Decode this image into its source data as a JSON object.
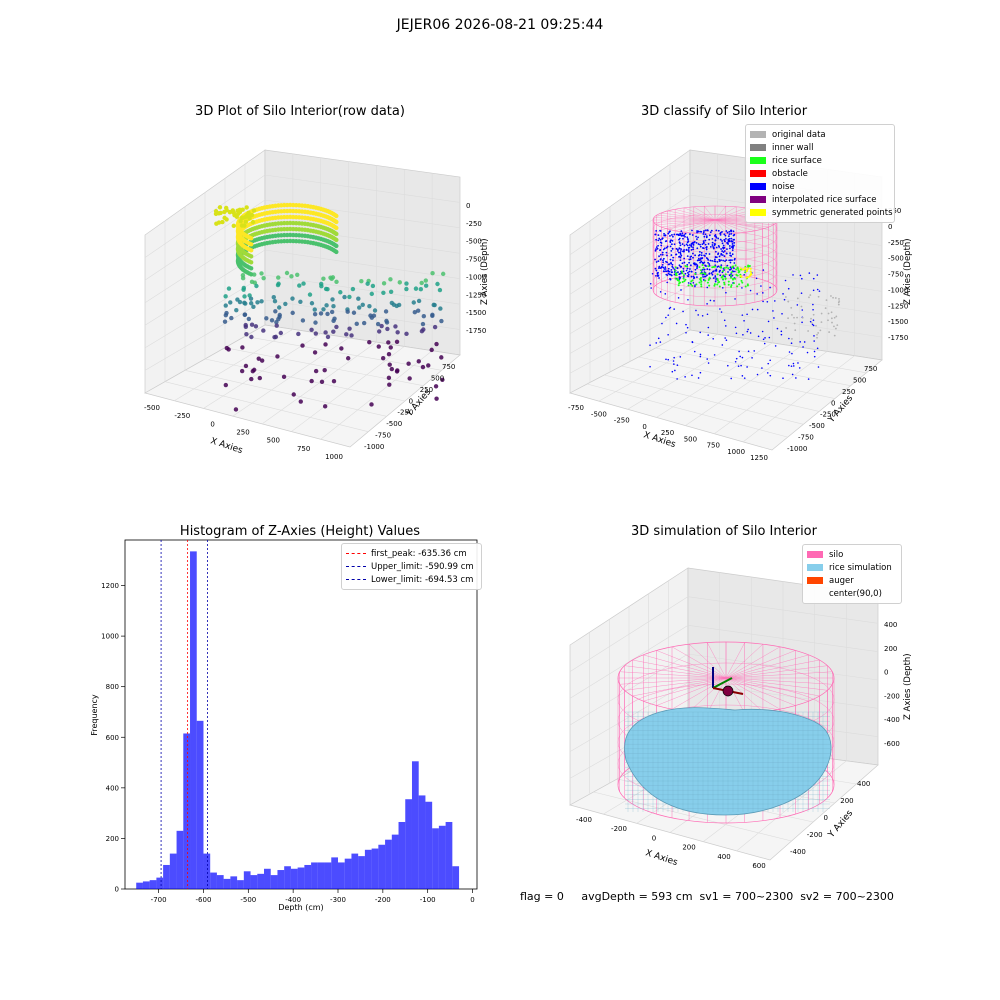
{
  "suptitle": "JEJER06 2026-08-21 09:25:44",
  "panels": {
    "raw": {
      "title": "3D Plot of Silo Interior(row data)",
      "xlabel": "X Axies",
      "ylabel": "Y Axies",
      "zlabel": "Z Axies (Depth)",
      "xticks": [
        "-500",
        "-250",
        "0",
        "250",
        "500",
        "750",
        "1000"
      ],
      "yticks": [
        "750",
        "500",
        "250",
        "0",
        "-250",
        "-500",
        "-750",
        "-1000"
      ],
      "zticks": [
        "0",
        "-250",
        "-500",
        "-750",
        "-1000",
        "-1250",
        "-1500",
        "-1750"
      ]
    },
    "classify": {
      "title": "3D classify of Silo Interior",
      "xlabel": "X Axies",
      "ylabel": "Y Axies",
      "zlabel": "Z Axies (Depth)",
      "xticks": [
        "-750",
        "-500",
        "-250",
        "0",
        "250",
        "500",
        "750",
        "1000",
        "1250"
      ],
      "yticks": [
        "750",
        "500",
        "250",
        "0",
        "-250",
        "-500",
        "-750",
        "-1000"
      ],
      "zticks": [
        "250",
        "0",
        "-250",
        "-500",
        "-750",
        "-1000",
        "-1250",
        "-1500",
        "-1750"
      ],
      "legend": [
        {
          "label": "original data",
          "color": "#b3b3b3"
        },
        {
          "label": "inner wall",
          "color": "#808080"
        },
        {
          "label": "rice surface",
          "color": "#1aff1a"
        },
        {
          "label": "obstacle",
          "color": "#ff0000"
        },
        {
          "label": "noise",
          "color": "#0000ff"
        },
        {
          "label": "interpolated rice surface",
          "color": "#800080"
        },
        {
          "label": "symmetric generated points",
          "color": "#ffff00"
        }
      ]
    },
    "histogram": {
      "title": "Histogram of Z-Axies (Height) Values",
      "xlabel": "Depth (cm)",
      "ylabel": "Frequency",
      "legend": [
        {
          "label": "first_peak: -635.36 cm",
          "color": "#ff0000"
        },
        {
          "label": "Upper_limit: -590.99 cm",
          "color": "#0000aa"
        },
        {
          "label": "Lower_limit: -694.53 cm",
          "color": "#0000aa"
        }
      ]
    },
    "simulation": {
      "title": "3D simulation of Silo Interior",
      "xlabel": "X Axies",
      "ylabel": "Y Axies",
      "zlabel": "Z Axies (Depth)",
      "xticks": [
        "-400",
        "-200",
        "0",
        "200",
        "400",
        "600"
      ],
      "yticks": [
        "400",
        "200",
        "0",
        "-200",
        "-400"
      ],
      "zticks": [
        "400",
        "200",
        "0",
        "-200",
        "-400",
        "-600"
      ],
      "legend": [
        {
          "label": "silo",
          "color": "#ff69b4"
        },
        {
          "label": "rice simulation",
          "color": "#87ceeb"
        },
        {
          "label": "auger",
          "color": "#ff4500"
        },
        {
          "label": "center(90,0)",
          "color": ""
        }
      ]
    }
  },
  "footer": "flag = 0     avgDepth = 593 cm  sv1 = 700~2300  sv2 = 700~2300",
  "chart_data": [
    {
      "type": "bar",
      "title": "Histogram of Z-Axies (Height) Values",
      "xlabel": "Depth (cm)",
      "ylabel": "Frequency",
      "xlim": [
        -775,
        10
      ],
      "ylim": [
        0,
        1380
      ],
      "xticks": [
        -700,
        -600,
        -500,
        -400,
        -300,
        -200,
        -100,
        0
      ],
      "yticks": [
        0,
        200,
        400,
        600,
        800,
        1000,
        1200
      ],
      "bar_color": "#0000ff",
      "bin_width": 15,
      "bin_starts": [
        -750,
        -735,
        -720,
        -705,
        -690,
        -675,
        -660,
        -645,
        -630,
        -615,
        -600,
        -585,
        -570,
        -555,
        -540,
        -525,
        -510,
        -495,
        -480,
        -465,
        -450,
        -435,
        -420,
        -405,
        -390,
        -375,
        -360,
        -345,
        -330,
        -315,
        -300,
        -285,
        -270,
        -255,
        -240,
        -225,
        -210,
        -195,
        -180,
        -165,
        -150,
        -135,
        -120,
        -105,
        -90,
        -75,
        -60,
        -45,
        -30
      ],
      "values": [
        25,
        30,
        35,
        45,
        95,
        140,
        230,
        615,
        1335,
        665,
        140,
        65,
        55,
        40,
        50,
        35,
        70,
        55,
        60,
        80,
        55,
        75,
        90,
        80,
        85,
        95,
        105,
        105,
        105,
        125,
        105,
        120,
        140,
        130,
        155,
        160,
        175,
        195,
        215,
        265,
        355,
        505,
        370,
        345,
        240,
        250,
        265,
        90,
        0
      ],
      "vlines": [
        {
          "label": "first_peak: -635.36 cm",
          "x": -635.36,
          "color": "#ff0000"
        },
        {
          "label": "Upper_limit: -590.99 cm",
          "x": -590.99,
          "color": "#0000aa"
        },
        {
          "label": "Lower_limit: -694.53 cm",
          "x": -694.53,
          "color": "#0000aa"
        }
      ],
      "legend_position": "top-right"
    }
  ]
}
